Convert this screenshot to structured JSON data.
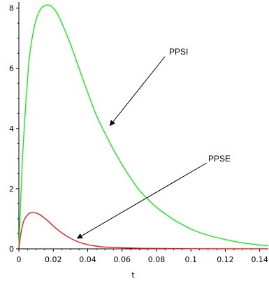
{
  "chart_data": {
    "type": "line",
    "xlabel": "t",
    "ylabel": "",
    "xlim": [
      0,
      0.145
    ],
    "ylim": [
      0,
      8.2
    ],
    "grid": false,
    "x_ticks": [
      0,
      0.02,
      0.04,
      0.06,
      0.08,
      0.1,
      0.12,
      0.14
    ],
    "x_tick_labels": [
      "0",
      "0.02",
      "0.04",
      "0.06",
      "0.08",
      "0.1",
      "0.12",
      "0.14"
    ],
    "y_ticks": [
      0,
      2,
      4,
      6,
      8
    ],
    "y_tick_labels": [
      "0",
      "2",
      "4",
      "6",
      "8"
    ],
    "series": [
      {
        "name": "PPSI",
        "color": "#1ee61e",
        "x": [
          0,
          0.001,
          0.002,
          0.003,
          0.004,
          0.005,
          0.006,
          0.008,
          0.01,
          0.012,
          0.014,
          0.016,
          0.018,
          0.02,
          0.022,
          0.025,
          0.03,
          0.035,
          0.04,
          0.045,
          0.05,
          0.055,
          0.06,
          0.065,
          0.07,
          0.075,
          0.08,
          0.085,
          0.09,
          0.1,
          0.11,
          0.12,
          0.13,
          0.14,
          0.145
        ],
        "values": [
          0.05,
          1.5,
          2.9,
          3.9,
          4.8,
          5.6,
          6.3,
          7.1,
          7.6,
          7.9,
          8.05,
          8.1,
          8.09,
          8.0,
          7.85,
          7.5,
          6.8,
          6.0,
          5.2,
          4.45,
          3.85,
          3.3,
          2.8,
          2.35,
          1.95,
          1.65,
          1.38,
          1.17,
          0.97,
          0.66,
          0.45,
          0.31,
          0.2,
          0.13,
          0.1
        ]
      },
      {
        "name": "PPSE",
        "color": "#e61e1e",
        "x": [
          0,
          0.001,
          0.002,
          0.003,
          0.004,
          0.005,
          0.006,
          0.008,
          0.009,
          0.01,
          0.012,
          0.014,
          0.016,
          0.018,
          0.02,
          0.025,
          0.03,
          0.035,
          0.04,
          0.045,
          0.05,
          0.06,
          0.07,
          0.08,
          0.09,
          0.1,
          0.12,
          0.145
        ],
        "values": [
          0.02,
          0.45,
          0.75,
          0.95,
          1.05,
          1.12,
          1.18,
          1.21,
          1.2,
          1.19,
          1.14,
          1.06,
          0.97,
          0.87,
          0.76,
          0.53,
          0.35,
          0.22,
          0.14,
          0.09,
          0.06,
          0.035,
          0.02,
          0.012,
          0.007,
          0.004,
          0.002,
          0.001
        ]
      }
    ],
    "annotations": [
      {
        "text": "PPSI",
        "target_x": 0.053,
        "target_y": 4.1
      },
      {
        "text": "PPSE",
        "target_x": 0.034,
        "target_y": 0.35
      }
    ]
  }
}
